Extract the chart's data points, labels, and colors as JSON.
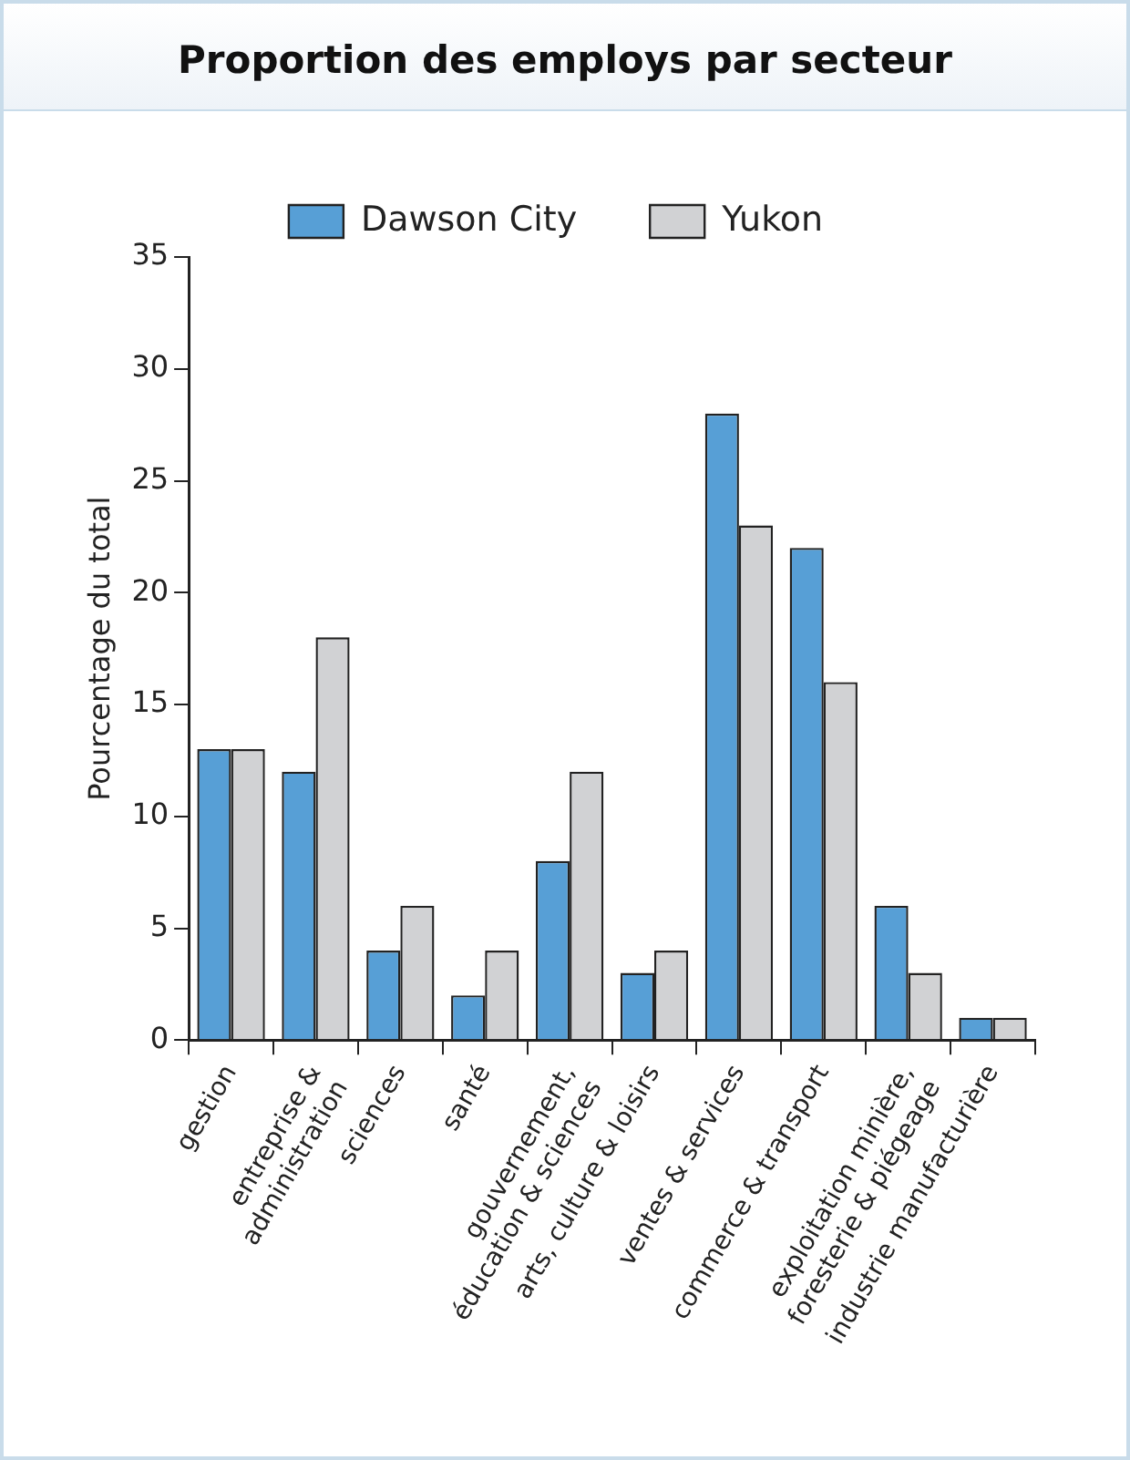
{
  "chart_data": {
    "type": "bar",
    "title": "Proportion des employs par secteur",
    "ylabel": "Pourcentage du total",
    "categories": [
      "gestion",
      "entreprise &\nadministration",
      "sciences",
      "santé",
      "gouvernement,\néducation & sciences",
      "arts, culture & loisirs",
      "ventes & services",
      "commerce & transport",
      "exploitation minière,\nforesterie & piégeage",
      "industrie manufacturière"
    ],
    "series": [
      {
        "name": "Dawson City",
        "color": "#579fd6",
        "values": [
          13,
          12,
          4,
          2,
          8,
          3,
          28,
          22,
          6,
          1
        ]
      },
      {
        "name": "Yukon",
        "color": "#d1d2d4",
        "values": [
          13,
          18,
          6,
          4,
          12,
          4,
          23,
          16,
          3,
          1
        ]
      }
    ],
    "ylim": [
      0,
      35
    ],
    "yticks": [
      0,
      5,
      10,
      15,
      20,
      25,
      30,
      35
    ],
    "grid": false,
    "legend": "top"
  }
}
